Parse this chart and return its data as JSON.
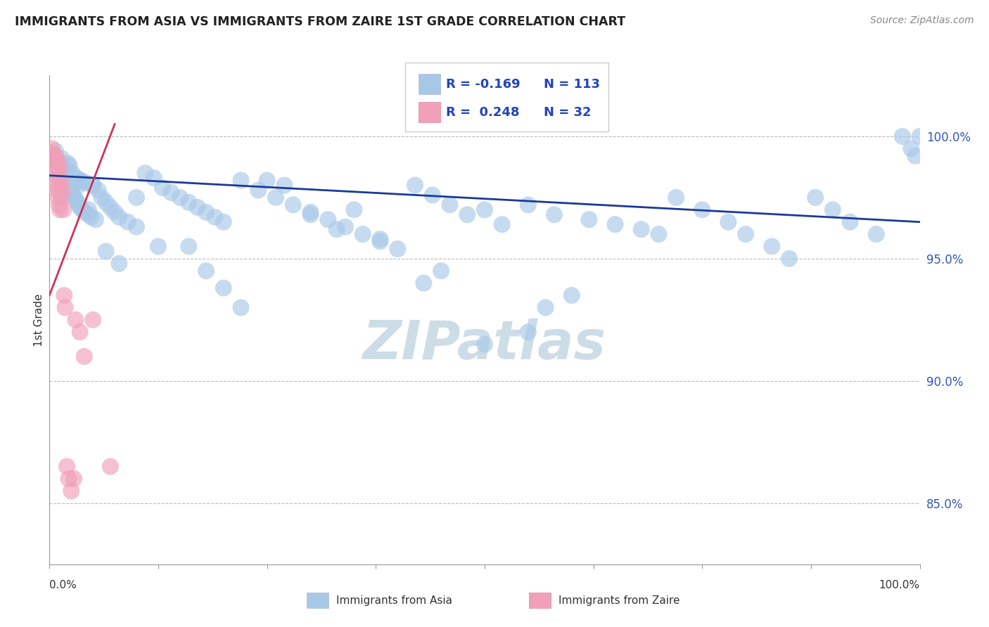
{
  "title": "IMMIGRANTS FROM ASIA VS IMMIGRANTS FROM ZAIRE 1ST GRADE CORRELATION CHART",
  "source_text": "Source: ZipAtlas.com",
  "ylabel": "1st Grade",
  "y_ticks": [
    85.0,
    90.0,
    95.0,
    100.0
  ],
  "y_tick_labels": [
    "85.0%",
    "90.0%",
    "95.0%",
    "100.0%"
  ],
  "xlim": [
    0.0,
    100.0
  ],
  "ylim": [
    82.5,
    102.5
  ],
  "legend_R_blue": "-0.169",
  "legend_N_blue": "113",
  "legend_R_pink": "0.248",
  "legend_N_pink": "32",
  "blue_color": "#a8c8e8",
  "pink_color": "#f0a0b8",
  "blue_line_color": "#1a3a9a",
  "pink_line_color": "#cc3355",
  "watermark_color": "#ccdde8",
  "background_color": "#ffffff",
  "blue_scatter_x": [
    0.5,
    0.7,
    0.9,
    1.0,
    1.1,
    1.2,
    1.3,
    1.4,
    1.5,
    1.6,
    1.7,
    1.8,
    1.9,
    2.0,
    2.1,
    2.2,
    2.3,
    2.4,
    2.5,
    2.6,
    2.7,
    2.8,
    2.9,
    3.0,
    3.1,
    3.2,
    3.3,
    3.4,
    3.5,
    3.6,
    3.8,
    4.0,
    4.2,
    4.5,
    4.8,
    5.0,
    5.3,
    5.6,
    6.0,
    6.5,
    7.0,
    7.5,
    8.0,
    9.0,
    10.0,
    11.0,
    12.0,
    13.0,
    14.0,
    15.0,
    16.0,
    17.0,
    18.0,
    19.0,
    20.0,
    22.0,
    24.0,
    26.0,
    28.0,
    30.0,
    32.0,
    34.0,
    36.0,
    38.0,
    40.0,
    42.0,
    44.0,
    46.0,
    48.0,
    50.0,
    52.0,
    55.0,
    58.0,
    62.0,
    65.0,
    68.0,
    70.0,
    72.0,
    75.0,
    78.0,
    80.0,
    83.0,
    85.0,
    88.0,
    90.0,
    92.0,
    95.0,
    98.0,
    99.0,
    99.5,
    100.0,
    60.0,
    57.0,
    45.0,
    43.0,
    50.0,
    55.0,
    30.0,
    35.0,
    25.0,
    27.0,
    33.0,
    38.0,
    10.0,
    12.5,
    5.0,
    6.5,
    8.0,
    3.5,
    4.5,
    16.0,
    18.0,
    20.0,
    22.0
  ],
  "blue_scatter_y": [
    99.2,
    99.4,
    98.9,
    99.0,
    98.8,
    98.6,
    98.5,
    99.1,
    98.4,
    98.7,
    98.3,
    98.2,
    98.6,
    98.0,
    98.9,
    97.9,
    98.8,
    97.8,
    97.7,
    98.5,
    97.6,
    98.1,
    97.5,
    97.4,
    98.3,
    97.3,
    98.0,
    97.2,
    97.1,
    98.2,
    97.0,
    96.9,
    98.1,
    96.8,
    96.7,
    98.0,
    96.6,
    97.8,
    97.5,
    97.3,
    97.1,
    96.9,
    96.7,
    96.5,
    96.3,
    98.5,
    98.3,
    97.9,
    97.7,
    97.5,
    97.3,
    97.1,
    96.9,
    96.7,
    96.5,
    98.2,
    97.8,
    97.5,
    97.2,
    96.9,
    96.6,
    96.3,
    96.0,
    95.7,
    95.4,
    98.0,
    97.6,
    97.2,
    96.8,
    97.0,
    96.4,
    97.2,
    96.8,
    96.6,
    96.4,
    96.2,
    96.0,
    97.5,
    97.0,
    96.5,
    96.0,
    95.5,
    95.0,
    97.5,
    97.0,
    96.5,
    96.0,
    100.0,
    99.5,
    99.2,
    100.0,
    93.5,
    93.0,
    94.5,
    94.0,
    91.5,
    92.0,
    96.8,
    97.0,
    98.2,
    98.0,
    96.2,
    95.8,
    97.5,
    95.5,
    98.0,
    95.3,
    94.8,
    98.2,
    97.0,
    95.5,
    94.5,
    93.8,
    93.0
  ],
  "pink_scatter_x": [
    0.3,
    0.4,
    0.5,
    0.6,
    0.7,
    0.7,
    0.8,
    0.8,
    0.9,
    0.9,
    1.0,
    1.0,
    1.0,
    1.1,
    1.1,
    1.2,
    1.2,
    1.3,
    1.4,
    1.5,
    1.6,
    1.7,
    1.8,
    2.0,
    2.2,
    2.5,
    2.8,
    3.0,
    3.5,
    4.0,
    5.0,
    7.0
  ],
  "pink_scatter_y": [
    99.5,
    99.3,
    98.8,
    99.0,
    98.5,
    99.2,
    98.0,
    99.0,
    97.8,
    98.5,
    97.5,
    98.3,
    99.0,
    97.2,
    98.0,
    97.0,
    98.7,
    98.2,
    97.5,
    97.8,
    97.0,
    93.5,
    93.0,
    86.5,
    86.0,
    85.5,
    86.0,
    92.5,
    92.0,
    91.0,
    92.5,
    86.5
  ],
  "blue_trend_x": [
    0.0,
    100.0
  ],
  "blue_trend_y": [
    98.4,
    96.5
  ],
  "pink_trend_x": [
    0.0,
    7.5
  ],
  "pink_trend_y": [
    93.5,
    100.5
  ]
}
